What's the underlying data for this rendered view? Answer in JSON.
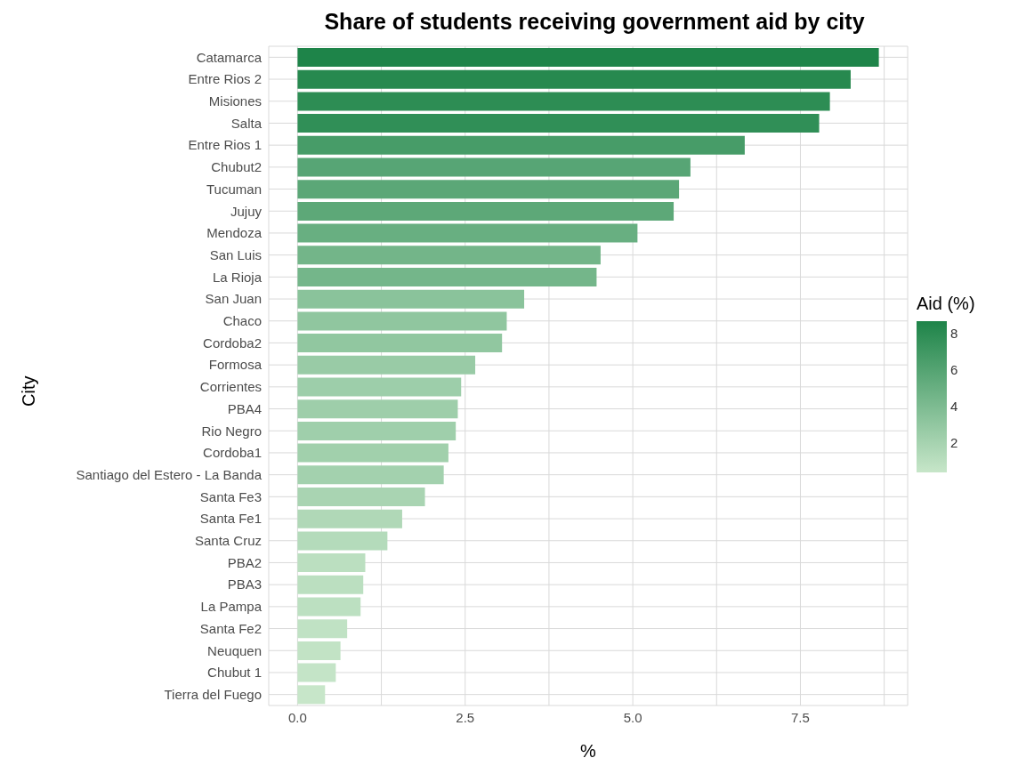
{
  "chart_data": {
    "type": "bar",
    "orientation": "horizontal",
    "title": "Share of students receiving government aid by city",
    "xlabel": "%",
    "ylabel": "City",
    "clabel": "Aid (%)",
    "categories": [
      "Catamarca",
      "Entre Rios 2",
      "Misiones",
      "Salta",
      "Entre Rios 1",
      "Chubut2",
      "Tucuman",
      "Jujuy",
      "Mendoza",
      "San Luis",
      "La Rioja",
      "San Juan",
      "Chaco",
      "Cordoba2",
      "Formosa",
      "Corrientes",
      "PBA4",
      "Rio Negro",
      "Cordoba1",
      "Santiago del Estero - La Banda",
      "Santa Fe3",
      "Santa Fe1",
      "Santa Cruz",
      "PBA2",
      "PBA3",
      "La Pampa",
      "Santa Fe2",
      "Neuquen",
      "Chubut 1",
      "Tierra del Fuego"
    ],
    "values": [
      8.67,
      8.25,
      7.94,
      7.78,
      6.67,
      5.86,
      5.69,
      5.61,
      5.07,
      4.52,
      4.46,
      3.38,
      3.12,
      3.05,
      2.65,
      2.44,
      2.39,
      2.36,
      2.25,
      2.18,
      1.9,
      1.56,
      1.34,
      1.01,
      0.98,
      0.94,
      0.74,
      0.64,
      0.57,
      0.41
    ],
    "colors": [
      "#1e8449",
      "#27894f",
      "#2d8d54",
      "#308f57",
      "#479c68",
      "#57a575",
      "#5ba777",
      "#5da878",
      "#68af81",
      "#73b589",
      "#74b68a",
      "#8ac39b",
      "#90c69f",
      "#91c7a0",
      "#99cba6",
      "#9dceaa",
      "#9eceaa",
      "#9fcfab",
      "#a1d0ac",
      "#a3d1ae",
      "#a9d4b2",
      "#b0d8b7",
      "#b4dbbb",
      "#bbdfc0",
      "#bbdfc0",
      "#bce0c1",
      "#c0e2c4",
      "#c2e3c5",
      "#c4e4c7",
      "#c7e6c9"
    ],
    "xlim": [
      -0.43,
      9.1
    ],
    "xticks": [
      {
        "value": 0,
        "label": "0.0"
      },
      {
        "value": 1.25,
        "label": null
      },
      {
        "value": 2.5,
        "label": "2.5"
      },
      {
        "value": 3.75,
        "label": null
      },
      {
        "value": 5,
        "label": "5.0"
      },
      {
        "value": 6.25,
        "label": null
      },
      {
        "value": 7.5,
        "label": "7.5"
      },
      {
        "value": 8.75,
        "label": null
      }
    ],
    "clim": [
      0.41,
      8.67
    ],
    "cticks": [
      2,
      4,
      6,
      8
    ],
    "grid": true
  }
}
